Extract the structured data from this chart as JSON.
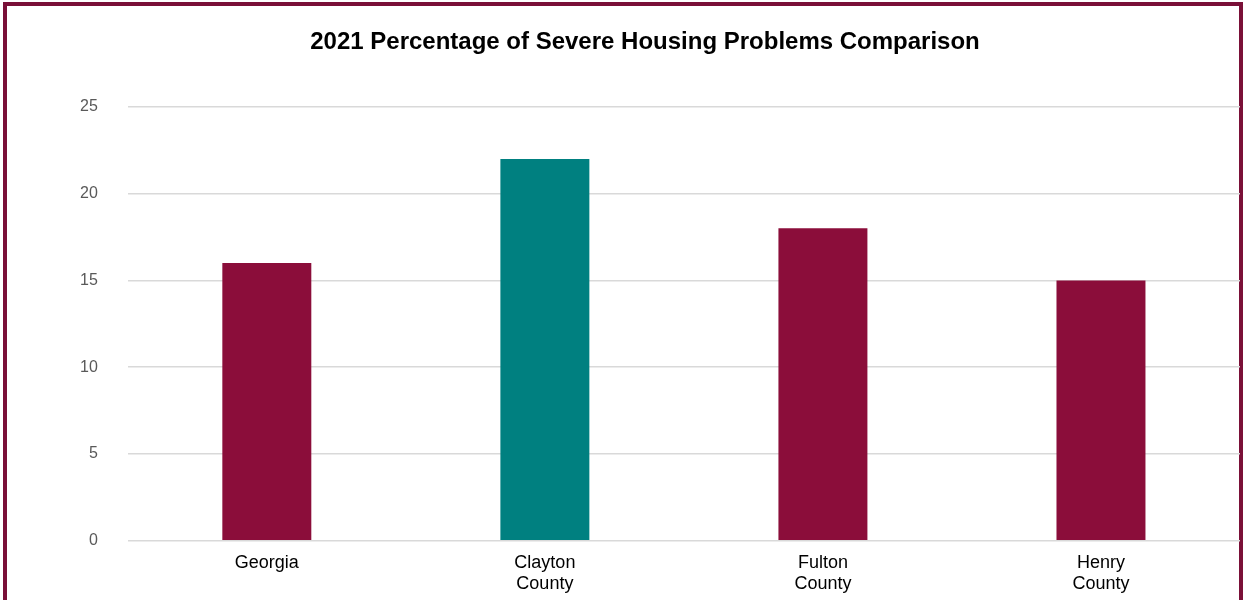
{
  "chart_data": {
    "type": "bar",
    "title": "2021 Percentage of Severe Housing Problems Comparison",
    "categories": [
      "Georgia",
      "Clayton County",
      "Fulton County",
      "Henry County"
    ],
    "values": [
      16,
      22,
      18,
      15
    ],
    "colors": [
      "#8b0d3a",
      "#008080",
      "#8b0d3a",
      "#8b0d3a"
    ],
    "ylim": [
      0,
      25
    ],
    "yticks": [
      0,
      5,
      10,
      15,
      20,
      25
    ],
    "grid": "y",
    "legend": false
  }
}
